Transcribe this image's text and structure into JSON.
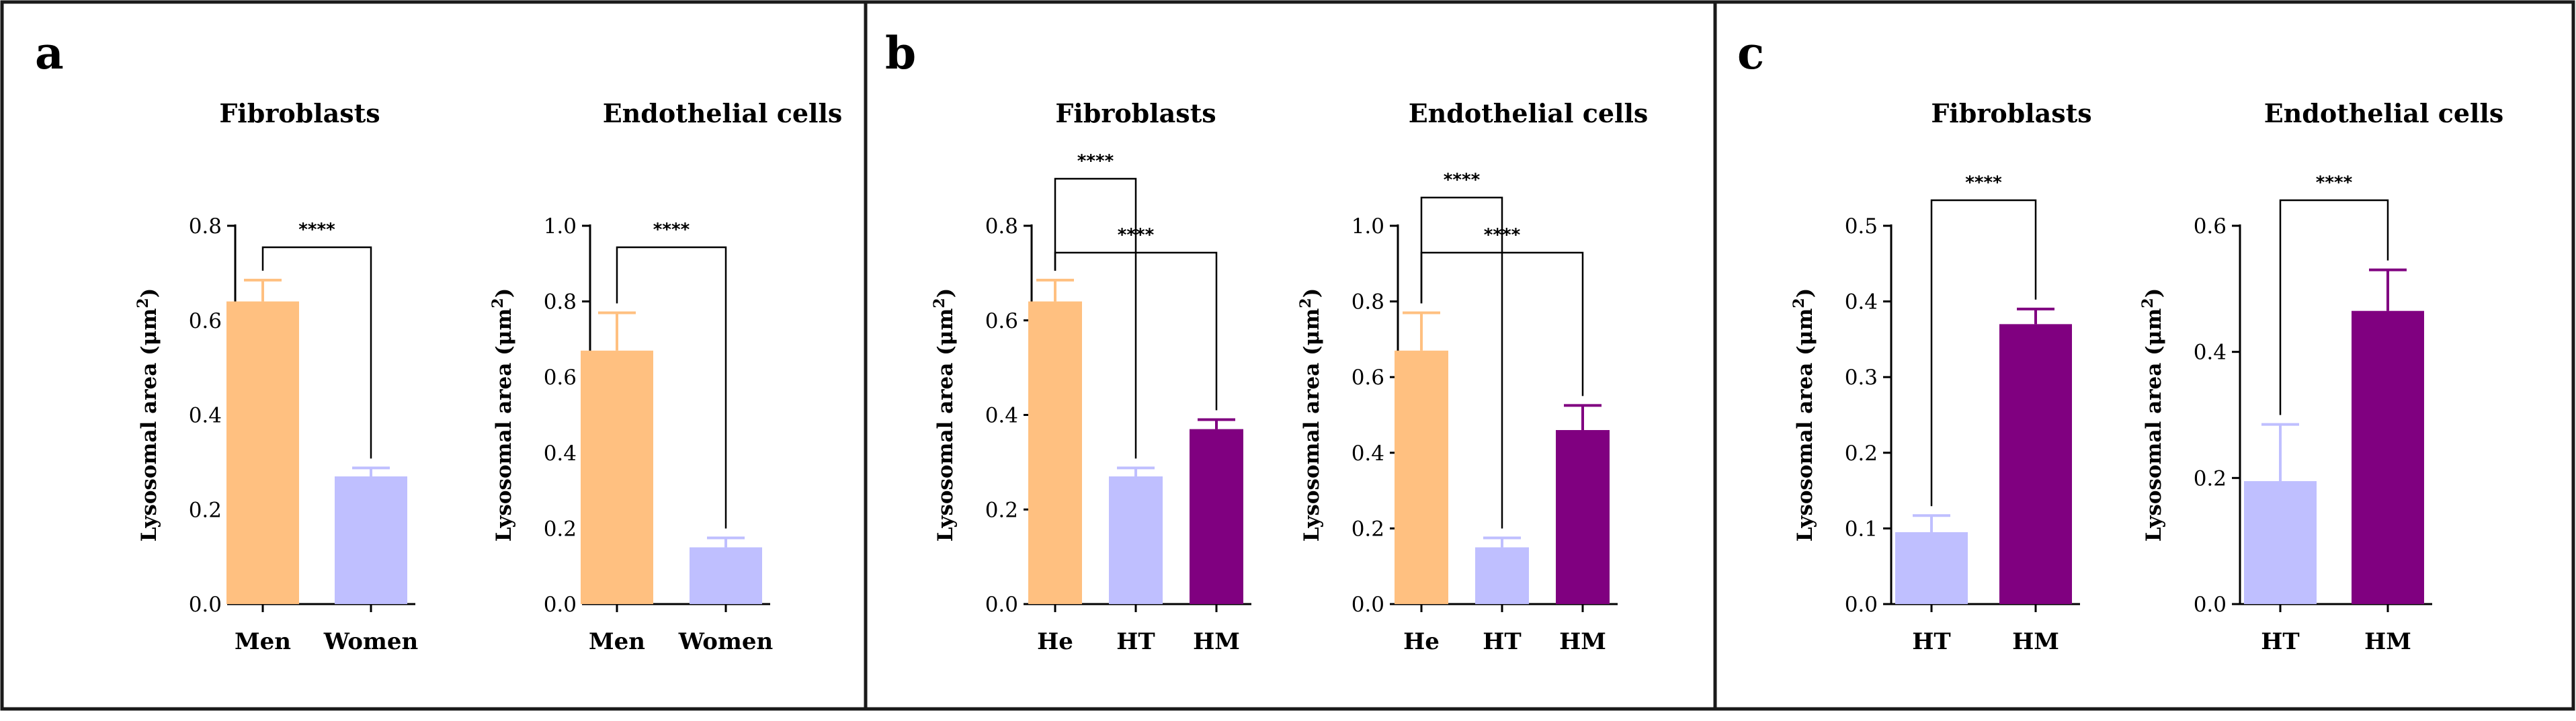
{
  "figure": {
    "panels": [
      {
        "label": "a"
      },
      {
        "label": "b"
      },
      {
        "label": "c"
      }
    ]
  },
  "colors": {
    "He": "#FFC080",
    "Men": "#FFC080",
    "HT": "#BFBFFF",
    "Women": "#BFBFFF",
    "HM": "#800080"
  },
  "chart_data": [
    {
      "panel": "a",
      "type": "bar",
      "title": "Fibroblasts",
      "ylabel": "Lysosomal area (μm2)",
      "ylim": [
        0,
        0.8
      ],
      "yticks": [
        "0.0",
        "0.2",
        "0.4",
        "0.6",
        "0.8"
      ],
      "categories": [
        "Men",
        "Women"
      ],
      "values": [
        0.64,
        0.27
      ],
      "errors": [
        0.045,
        0.018
      ],
      "significance": [
        {
          "from": 0,
          "to": 1,
          "label": "****"
        }
      ]
    },
    {
      "panel": "a",
      "type": "bar",
      "title": "Endothelial cells",
      "ylabel": "Lysosomal area (μm2)",
      "ylim": [
        0,
        1.0
      ],
      "yticks": [
        "0.0",
        "0.2",
        "0.4",
        "0.6",
        "0.8",
        "1.0"
      ],
      "categories": [
        "Men",
        "Women"
      ],
      "values": [
        0.67,
        0.15
      ],
      "errors": [
        0.1,
        0.025
      ],
      "significance": [
        {
          "from": 0,
          "to": 1,
          "label": "****"
        }
      ]
    },
    {
      "panel": "b",
      "type": "bar",
      "title": "Fibroblasts",
      "ylabel": "Lysosomal area (μm2)",
      "ylim": [
        0,
        0.8
      ],
      "yticks": [
        "0.0",
        "0.2",
        "0.4",
        "0.6",
        "0.8"
      ],
      "categories": [
        "He",
        "HT",
        "HM"
      ],
      "values": [
        0.64,
        0.27,
        0.37
      ],
      "errors": [
        0.045,
        0.018,
        0.02
      ],
      "significance": [
        {
          "from": 0,
          "to": 1,
          "label": "****"
        },
        {
          "from": 0,
          "to": 2,
          "label": "****"
        }
      ]
    },
    {
      "panel": "b",
      "type": "bar",
      "title": "Endothelial cells",
      "ylabel": "Lysosomal area (μm2)",
      "ylim": [
        0,
        1.0
      ],
      "yticks": [
        "0.0",
        "0.2",
        "0.4",
        "0.6",
        "0.8",
        "1.0"
      ],
      "categories": [
        "He",
        "HT",
        "HM"
      ],
      "values": [
        0.67,
        0.15,
        0.46
      ],
      "errors": [
        0.1,
        0.025,
        0.065
      ],
      "significance": [
        {
          "from": 0,
          "to": 1,
          "label": "****"
        },
        {
          "from": 0,
          "to": 2,
          "label": "****"
        }
      ]
    },
    {
      "panel": "c",
      "type": "bar",
      "title": "Fibroblasts",
      "ylabel": "Lysosomal area (μm2)",
      "ylim": [
        0,
        0.5
      ],
      "yticks": [
        "0.0",
        "0.1",
        "0.2",
        "0.3",
        "0.4",
        "0.5"
      ],
      "categories": [
        "HT",
        "HM"
      ],
      "values": [
        0.095,
        0.37
      ],
      "errors": [
        0.022,
        0.02
      ],
      "significance": [
        {
          "from": 0,
          "to": 1,
          "label": "****"
        }
      ]
    },
    {
      "panel": "c",
      "type": "bar",
      "title": "Endothelial cells",
      "ylabel": "Lysosomal area (μm2)",
      "ylim": [
        0,
        0.6
      ],
      "yticks": [
        "0.0",
        "0.2",
        "0.4",
        "0.6"
      ],
      "categories": [
        "HT",
        "HM"
      ],
      "values": [
        0.195,
        0.465
      ],
      "errors": [
        0.09,
        0.065
      ],
      "significance": [
        {
          "from": 0,
          "to": 1,
          "label": "****"
        }
      ]
    }
  ]
}
